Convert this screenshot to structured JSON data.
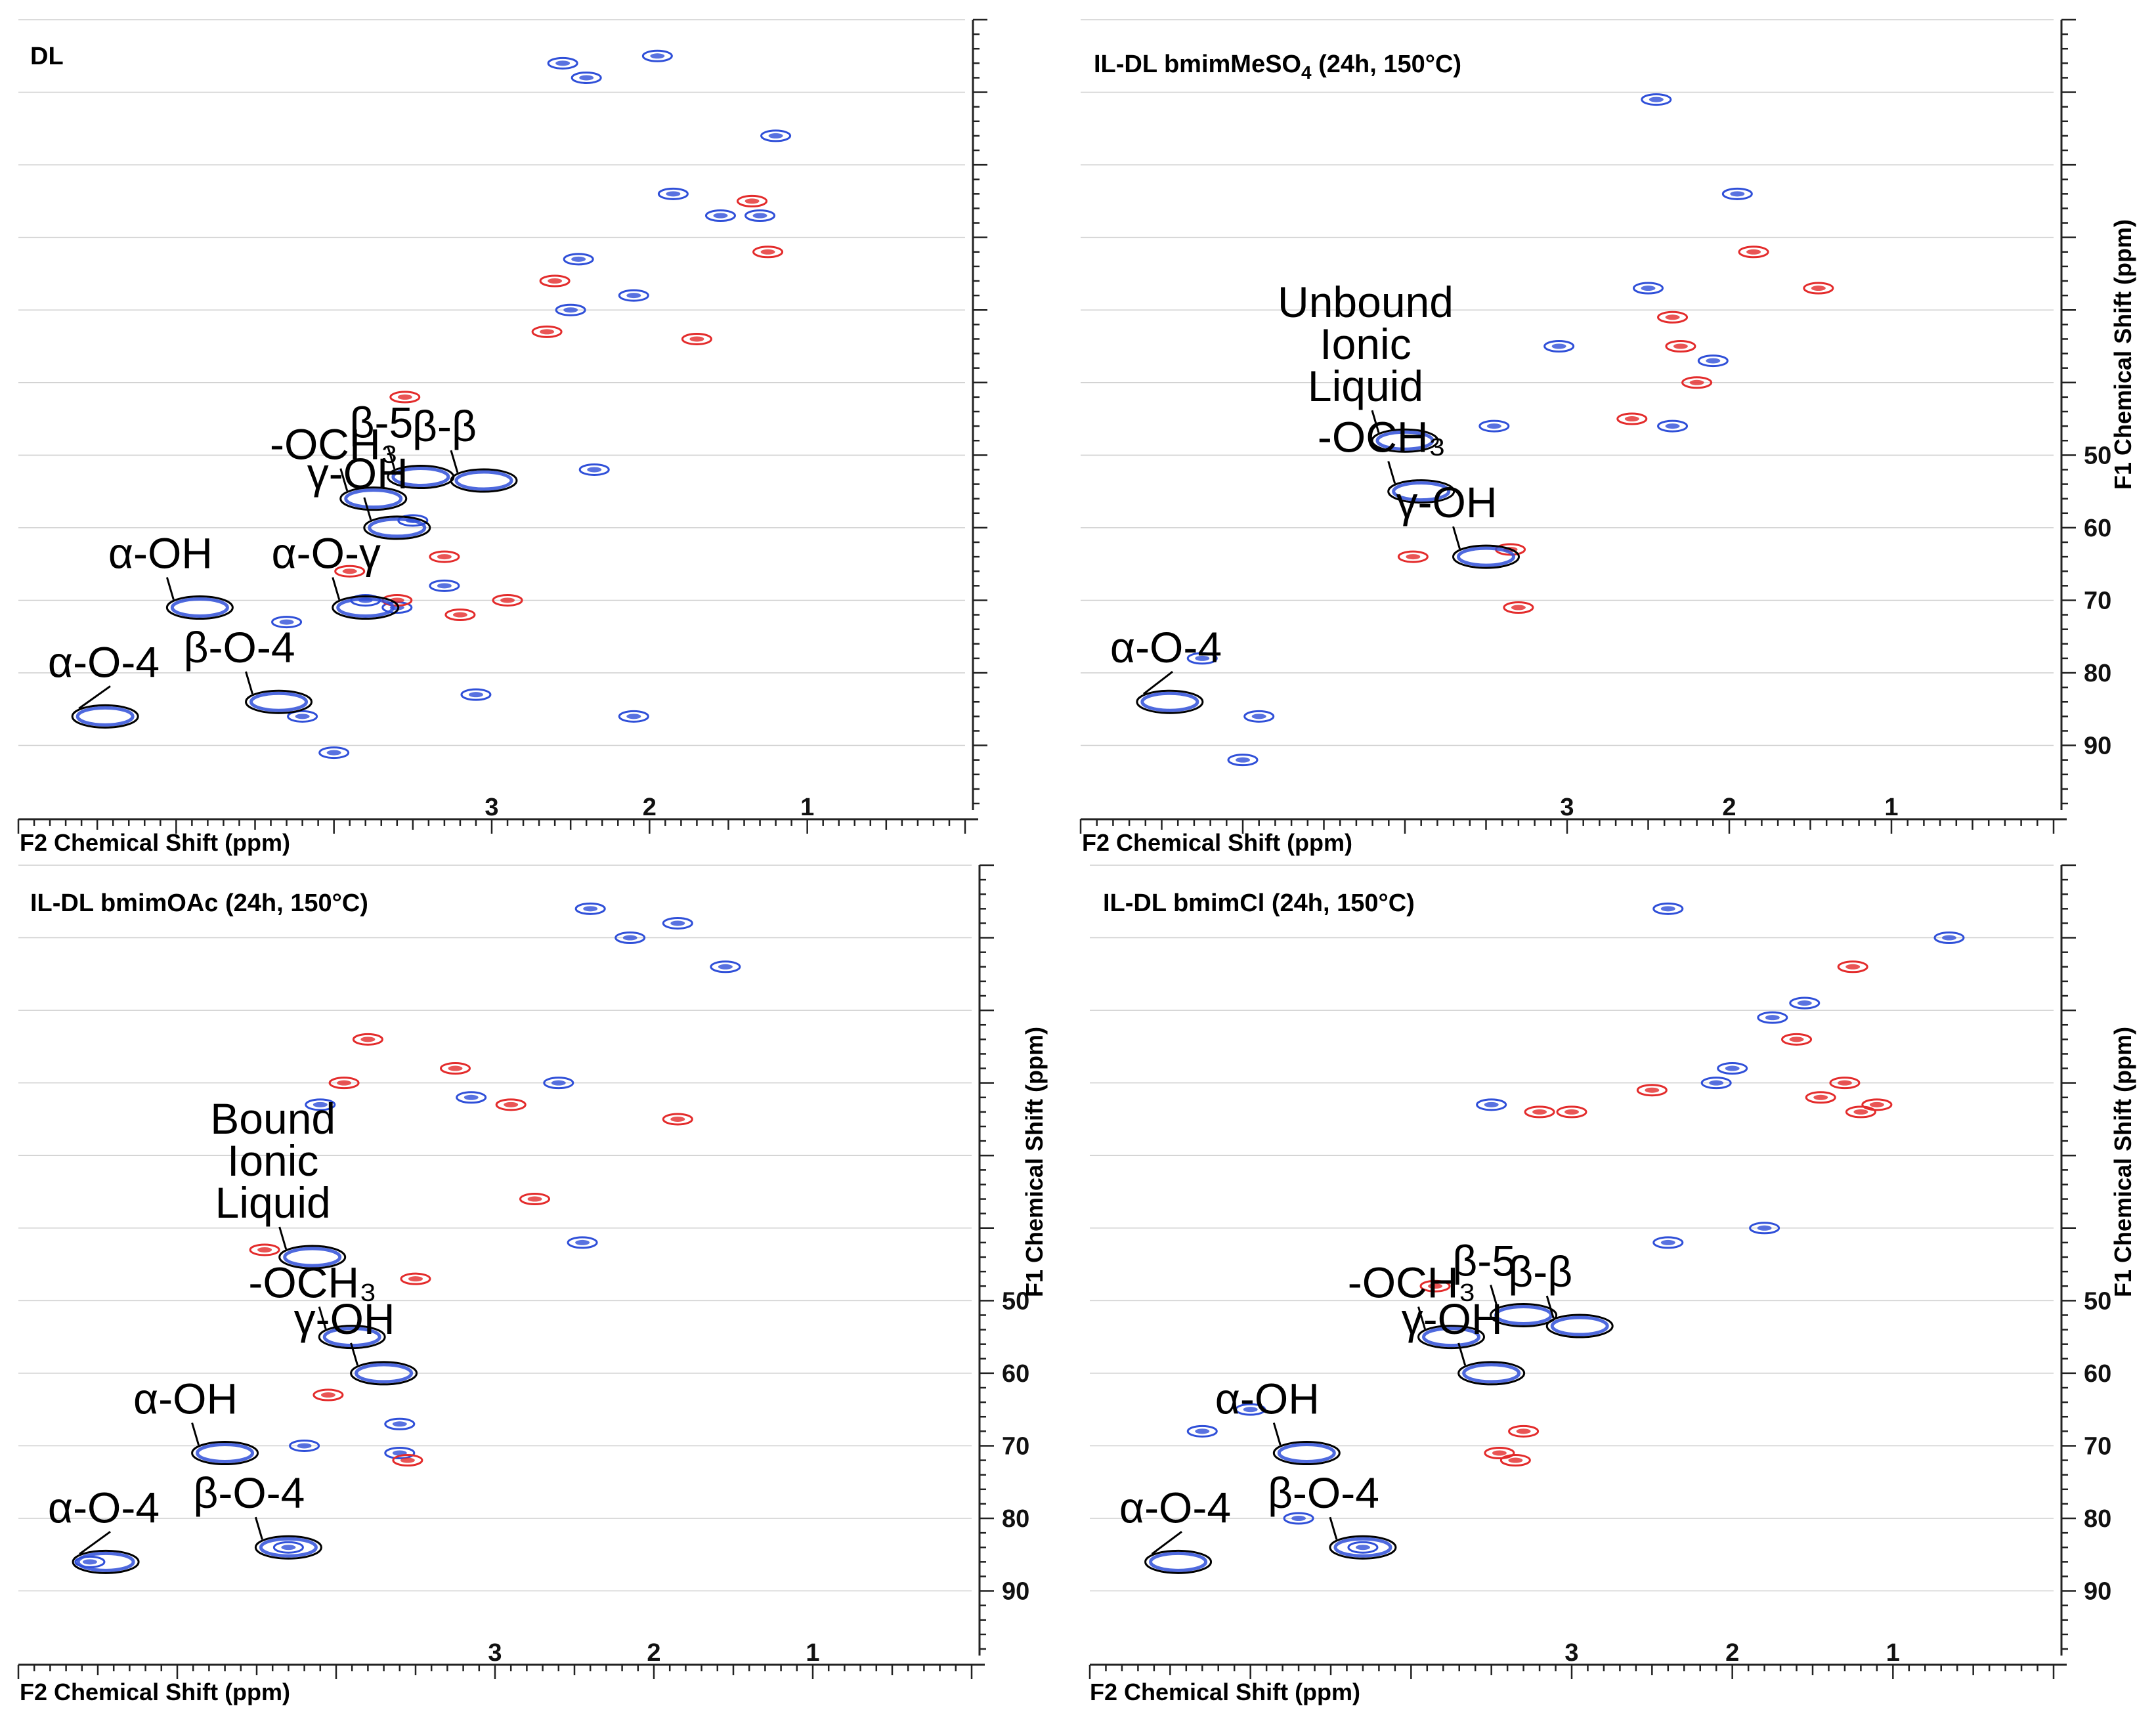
{
  "figure": {
    "colors": {
      "positive": "#2f4fd8",
      "negative": "#e32b2b",
      "axis": "#222222",
      "grid": "#cfcfcf",
      "circle": "#000000"
    }
  },
  "chart_data": [
    {
      "type": "scatter",
      "title": "DL",
      "title_parts": [
        "DL",
        "",
        ""
      ],
      "xlabel": "F2 Chemical Shift (ppm)",
      "ylabel": "F1 Chemical Shift (ppm)",
      "xlim": [
        6.0,
        0.0
      ],
      "ylim": [
        -10,
        98
      ],
      "x_ticks": [
        1,
        2,
        3
      ],
      "y_ticks": [
        50,
        60,
        70,
        80,
        90
      ],
      "y_tick_labels_shown": false,
      "series": [
        {
          "name": "CH/CH3 (positive phase)",
          "color": "blue",
          "points": [
            [
              1.95,
              -5
            ],
            [
              1.2,
              6
            ],
            [
              1.85,
              14
            ],
            [
              2.45,
              23
            ],
            [
              1.3,
              17
            ],
            [
              1.55,
              17
            ],
            [
              2.1,
              28
            ],
            [
              2.5,
              30
            ],
            [
              2.35,
              52
            ],
            [
              3.5,
              59
            ],
            [
              3.3,
              68
            ],
            [
              3.6,
              71
            ],
            [
              3.8,
              70
            ],
            [
              4.3,
              73
            ],
            [
              4.2,
              86
            ],
            [
              3.1,
              83
            ],
            [
              2.1,
              86
            ],
            [
              4.0,
              91
            ],
            [
              2.4,
              -2
            ],
            [
              2.55,
              -4
            ]
          ]
        },
        {
          "name": "CH2 (negative phase)",
          "color": "red",
          "points": [
            [
              1.35,
              15
            ],
            [
              1.25,
              22
            ],
            [
              1.7,
              34
            ],
            [
              2.6,
              26
            ],
            [
              2.65,
              33
            ],
            [
              3.55,
              42
            ],
            [
              3.3,
              64
            ],
            [
              3.9,
              66
            ],
            [
              3.6,
              70
            ],
            [
              3.2,
              72
            ],
            [
              2.9,
              70
            ]
          ]
        }
      ],
      "annotations": [
        {
          "label": "-OCH₃",
          "x": 3.75,
          "y": 56.0
        },
        {
          "label": "β-5",
          "x": 3.45,
          "y": 53.0
        },
        {
          "label": "β-β",
          "x": 3.05,
          "y": 53.5
        },
        {
          "label": "γ-OH",
          "x": 3.6,
          "y": 60.0
        },
        {
          "label": "α-OH",
          "x": 4.85,
          "y": 71.0
        },
        {
          "label": "α-O-γ",
          "x": 3.8,
          "y": 71.0
        },
        {
          "label": "α-O-4",
          "x": 5.45,
          "y": 86.0
        },
        {
          "label": "β-O-4",
          "x": 4.35,
          "y": 84.0
        }
      ]
    },
    {
      "type": "scatter",
      "title": "IL-DL bmimMeSO4 (24h, 150°C)",
      "title_parts": [
        "IL-DL bmimMeSO",
        "4",
        " (24h, 150°C)"
      ],
      "xlabel": "F2 Chemical Shift (ppm)",
      "ylabel": "F1 Chemical Shift (ppm)",
      "xlim": [
        6.0,
        0.0
      ],
      "ylim": [
        -10,
        98
      ],
      "x_ticks": [
        1,
        2,
        3
      ],
      "y_ticks": [
        50,
        60,
        70,
        80,
        90
      ],
      "y_tick_labels_shown": true,
      "series": [
        {
          "name": "CH/CH3 (positive phase)",
          "color": "blue",
          "points": [
            [
              2.45,
              1
            ],
            [
              1.95,
              14
            ],
            [
              2.5,
              27
            ],
            [
              3.05,
              35
            ],
            [
              2.1,
              37
            ],
            [
              2.35,
              46
            ],
            [
              3.45,
              46
            ],
            [
              5.25,
              78
            ],
            [
              4.9,
              86
            ],
            [
              5.0,
              92
            ]
          ]
        },
        {
          "name": "CH2 (negative phase)",
          "color": "red",
          "points": [
            [
              3.35,
              63
            ],
            [
              3.3,
              71
            ],
            [
              3.95,
              64
            ],
            [
              2.35,
              31
            ],
            [
              2.3,
              35
            ],
            [
              2.2,
              40
            ],
            [
              1.85,
              22
            ],
            [
              1.45,
              27
            ],
            [
              2.6,
              45
            ]
          ]
        }
      ],
      "annotations": [
        {
          "label": "Unbound Ionic Liquid",
          "x": 4.0,
          "y": 48.0
        },
        {
          "label": "-OCH₃",
          "x": 3.9,
          "y": 55.0
        },
        {
          "label": "γ-OH",
          "x": 3.5,
          "y": 64.0
        },
        {
          "label": "α-O-4",
          "x": 5.45,
          "y": 84.0
        }
      ]
    },
    {
      "type": "scatter",
      "title": "IL-DL bmimOAc (24h, 150°C)",
      "title_parts": [
        "IL-DL bmimOAc (24h, 150°C)",
        "",
        ""
      ],
      "xlabel": "F2 Chemical Shift (ppm)",
      "ylabel": "F1 Chemical Shift (ppm)",
      "xlim": [
        6.0,
        0.0
      ],
      "ylim": [
        -10,
        98
      ],
      "x_ticks": [
        1,
        2,
        3
      ],
      "y_ticks": [
        50,
        60,
        70,
        80,
        90
      ],
      "y_tick_labels_shown": true,
      "series": [
        {
          "name": "CH/CH3 (positive phase)",
          "color": "blue",
          "points": [
            [
              2.4,
              -4
            ],
            [
              2.15,
              0
            ],
            [
              1.85,
              -2
            ],
            [
              1.55,
              4
            ],
            [
              2.6,
              20
            ],
            [
              3.15,
              22
            ],
            [
              4.1,
              23
            ],
            [
              2.45,
              42
            ],
            [
              4.2,
              70
            ],
            [
              5.55,
              86
            ],
            [
              4.3,
              84
            ],
            [
              3.6,
              67
            ],
            [
              3.6,
              71
            ]
          ]
        },
        {
          "name": "CH2 (negative phase)",
          "color": "red",
          "points": [
            [
              3.8,
              14
            ],
            [
              3.95,
              20
            ],
            [
              3.25,
              18
            ],
            [
              2.9,
              23
            ],
            [
              1.85,
              25
            ],
            [
              2.75,
              36
            ],
            [
              3.5,
              47
            ],
            [
              4.05,
              63
            ],
            [
              3.55,
              72
            ],
            [
              4.45,
              43
            ]
          ]
        }
      ],
      "annotations": [
        {
          "label": "Bound Ionic Liquid",
          "x": 4.15,
          "y": 44.0
        },
        {
          "label": "-OCH₃",
          "x": 3.9,
          "y": 55.0
        },
        {
          "label": "γ-OH",
          "x": 3.7,
          "y": 60.0
        },
        {
          "label": "α-OH",
          "x": 4.7,
          "y": 71.0
        },
        {
          "label": "α-O-4",
          "x": 5.45,
          "y": 86.0
        },
        {
          "label": "β-O-4",
          "x": 4.3,
          "y": 84.0
        }
      ]
    },
    {
      "type": "scatter",
      "title": "IL-DL bmimCl (24h, 150°C)",
      "title_parts": [
        "IL-DL bmimCl (24h, 150°C)",
        "",
        ""
      ],
      "xlabel": "F2 Chemical Shift (ppm)",
      "ylabel": "F1 Chemical Shift (ppm)",
      "xlim": [
        6.0,
        0.0
      ],
      "ylim": [
        -10,
        98
      ],
      "x_ticks": [
        1,
        2,
        3
      ],
      "y_ticks": [
        50,
        60,
        70,
        80,
        90
      ],
      "y_tick_labels_shown": true,
      "series": [
        {
          "name": "CH/CH3 (positive phase)",
          "color": "blue",
          "points": [
            [
              2.4,
              -4
            ],
            [
              0.65,
              0
            ],
            [
              1.55,
              9
            ],
            [
              1.75,
              11
            ],
            [
              2.0,
              18
            ],
            [
              2.1,
              20
            ],
            [
              3.5,
              23
            ],
            [
              1.8,
              40
            ],
            [
              2.4,
              42
            ],
            [
              4.3,
              84
            ],
            [
              4.7,
              80
            ],
            [
              5.0,
              65
            ],
            [
              5.3,
              68
            ]
          ]
        },
        {
          "name": "CH2 (negative phase)",
          "color": "red",
          "points": [
            [
              1.25,
              4
            ],
            [
              1.6,
              14
            ],
            [
              1.3,
              20
            ],
            [
              1.1,
              23
            ],
            [
              1.2,
              24
            ],
            [
              1.45,
              22
            ],
            [
              2.5,
              21
            ],
            [
              3.0,
              24
            ],
            [
              3.2,
              24
            ],
            [
              3.3,
              68
            ],
            [
              3.45,
              71
            ],
            [
              3.35,
              72
            ],
            [
              3.85,
              48
            ]
          ]
        }
      ],
      "annotations": [
        {
          "label": "-OCH₃",
          "x": 3.75,
          "y": 55.0
        },
        {
          "label": "β-5",
          "x": 3.3,
          "y": 52.0
        },
        {
          "label": "β-β",
          "x": 2.95,
          "y": 53.5
        },
        {
          "label": "γ-OH",
          "x": 3.5,
          "y": 60.0
        },
        {
          "label": "α-OH",
          "x": 4.65,
          "y": 71.0
        },
        {
          "label": "α-O-4",
          "x": 5.45,
          "y": 86.0
        },
        {
          "label": "β-O-4",
          "x": 4.3,
          "y": 84.0
        }
      ]
    }
  ]
}
